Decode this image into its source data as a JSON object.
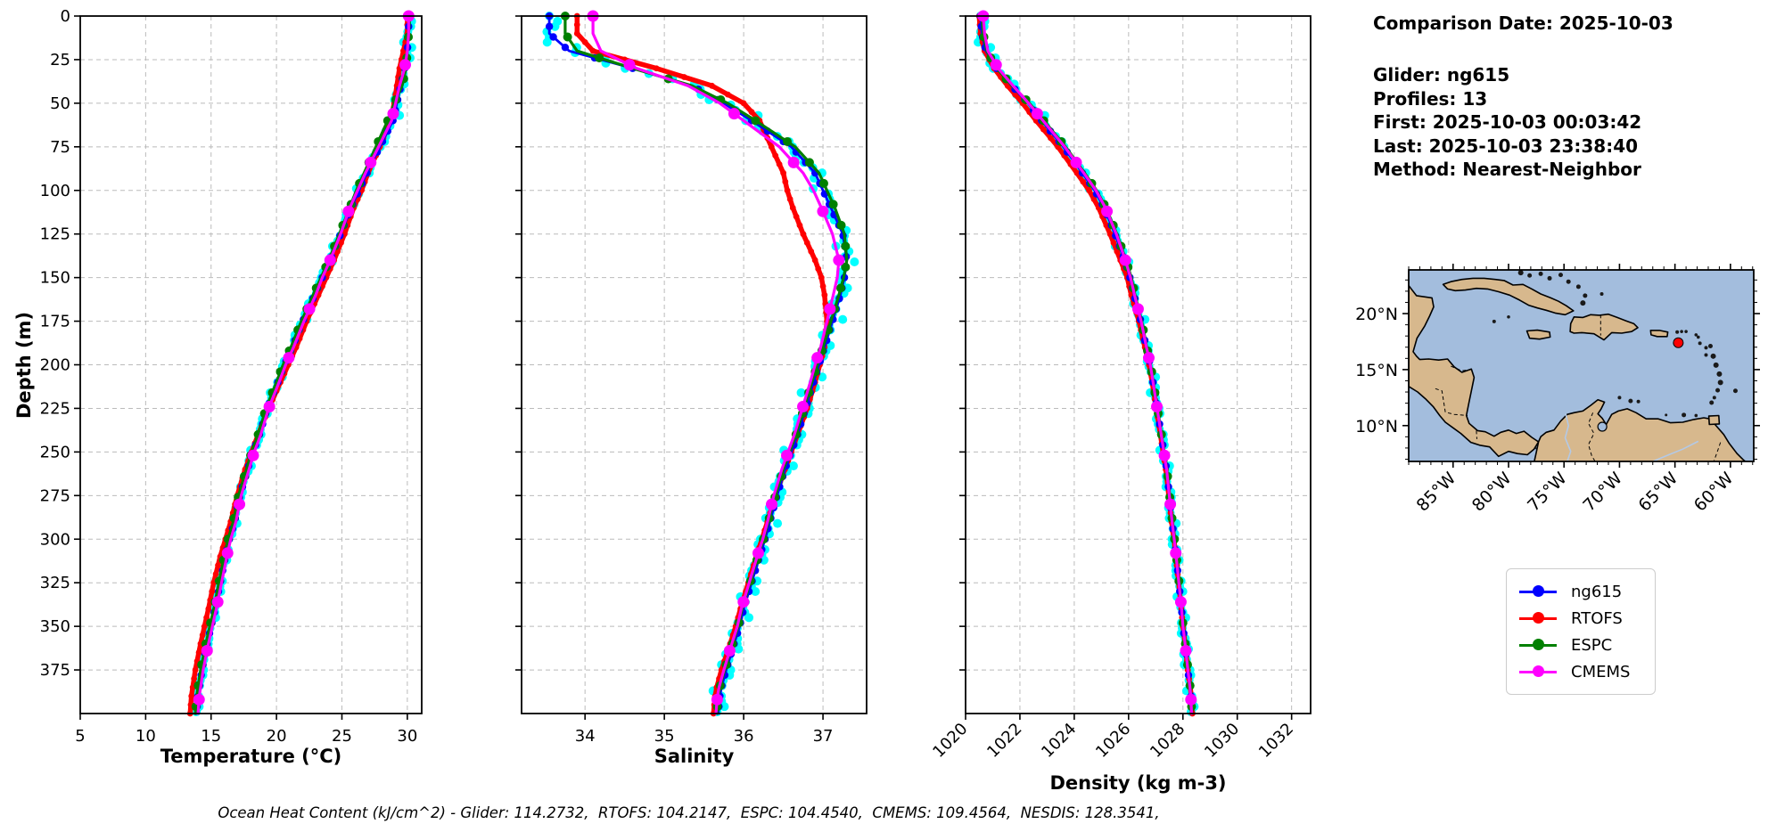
{
  "info": {
    "title": "Comparison Date: 2025-10-03",
    "lines": [
      "Glider: ng615",
      "Profiles: 13",
      "First: 2025-10-03 00:03:42",
      "Last: 2025-10-03 23:38:40",
      "Method: Nearest-Neighbor"
    ]
  },
  "caption": {
    "text": "Ocean Heat Content (kJ/cm^2) - Glider: 114.2732,  RTOFS: 104.2147,  ESPC: 104.4540,  CMEMS: 109.4564,  NESDIS: 128.3541,"
  },
  "legend": {
    "items": [
      {
        "label": "ng615",
        "color": "#0000ff"
      },
      {
        "label": "RTOFS",
        "color": "#ff0000"
      },
      {
        "label": "ESPC",
        "color": "#008000"
      },
      {
        "label": "CMEMS",
        "color": "#ff00ff"
      }
    ]
  },
  "map": {
    "water_color": "#a3bddd",
    "land_color": "#d7b88d",
    "extent": {
      "lon_w": [
        89.0,
        57.9
      ],
      "lat_n": [
        6.8,
        23.9
      ]
    },
    "lon_ticks": [
      85,
      80,
      75,
      70,
      65,
      60
    ],
    "lon_tick_labels": [
      "85°W",
      "80°W",
      "75°W",
      "70°W",
      "65°W",
      "60°W"
    ],
    "lat_ticks": [
      20,
      15,
      10
    ],
    "lat_tick_labels": [
      "20°N",
      "15°N",
      "10°N"
    ],
    "glider_point": {
      "lon_w": 64.7,
      "lat_n": 17.4,
      "color": "#ff0000"
    }
  },
  "chart_data": {
    "type": "line",
    "title": "",
    "depth_axis": {
      "label": "Depth (m)",
      "lim": [
        0,
        400
      ],
      "ticks": [
        0,
        25,
        50,
        75,
        100,
        125,
        150,
        175,
        200,
        225,
        250,
        275,
        300,
        325,
        350,
        375
      ]
    },
    "depths": [
      0,
      10,
      20,
      30,
      40,
      50,
      60,
      75,
      90,
      100,
      110,
      125,
      140,
      150,
      160,
      175,
      190,
      200,
      210,
      225,
      240,
      250,
      260,
      275,
      290,
      300,
      310,
      325,
      340,
      350,
      360,
      375,
      385,
      390,
      400
    ],
    "panels": [
      {
        "key": "temperature",
        "xlabel": "Temperature (°C)",
        "xlim": [
          5,
          31.1
        ],
        "xticks": [
          5,
          10,
          15,
          20,
          25,
          30
        ],
        "xtick_labels": [
          "5",
          "10",
          "15",
          "20",
          "25",
          "30"
        ],
        "rotate_xticks": false,
        "grid": true
      },
      {
        "key": "salinity",
        "xlabel": "Salinity",
        "xlim": [
          33.2,
          37.55
        ],
        "xticks": [
          34,
          35,
          36,
          37
        ],
        "xtick_labels": [
          "34",
          "35",
          "36",
          "37"
        ],
        "rotate_xticks": false,
        "grid": true
      },
      {
        "key": "density",
        "xlabel": "Density (kg m-3)",
        "xlim": [
          1020,
          1032.7
        ],
        "xticks": [
          1020,
          1022,
          1024,
          1026,
          1028,
          1030,
          1032
        ],
        "xtick_labels": [
          "1020",
          "1022",
          "1024",
          "1026",
          "1028",
          "1030",
          "1032"
        ],
        "rotate_xticks": true,
        "grid": true
      }
    ],
    "glider_spread": {
      "color": "#00ffff",
      "temperature": 0.22,
      "salinity": 0.1,
      "density": 0.14
    },
    "series": [
      {
        "name": "ng615",
        "color": "#0000ff",
        "temperature": [
          30.1,
          30.1,
          30.0,
          29.8,
          29.5,
          29.2,
          28.9,
          27.9,
          26.9,
          26.3,
          25.7,
          24.9,
          24.1,
          23.5,
          22.9,
          22.0,
          21.2,
          20.6,
          20.1,
          19.3,
          18.7,
          18.2,
          17.8,
          17.2,
          16.8,
          16.4,
          16.1,
          15.7,
          15.3,
          15.0,
          14.7,
          14.3,
          14.1,
          14.0,
          13.9
        ],
        "salinity": [
          33.55,
          33.55,
          33.8,
          34.6,
          35.35,
          35.75,
          36.1,
          36.6,
          36.9,
          37.0,
          37.1,
          37.25,
          37.3,
          37.27,
          37.22,
          37.12,
          37.02,
          36.95,
          36.88,
          36.78,
          36.68,
          36.6,
          36.52,
          36.42,
          36.33,
          36.27,
          36.2,
          36.1,
          36.0,
          35.95,
          35.88,
          35.78,
          35.72,
          35.7,
          35.68
        ],
        "density": [
          1020.55,
          1020.6,
          1020.75,
          1021.15,
          1021.7,
          1022.3,
          1022.8,
          1023.6,
          1024.3,
          1024.75,
          1025.1,
          1025.5,
          1025.85,
          1026.05,
          1026.2,
          1026.45,
          1026.65,
          1026.8,
          1026.9,
          1027.05,
          1027.2,
          1027.3,
          1027.4,
          1027.5,
          1027.6,
          1027.68,
          1027.75,
          1027.85,
          1027.95,
          1028.0,
          1028.08,
          1028.18,
          1028.26,
          1028.3,
          1028.33
        ]
      },
      {
        "name": "RTOFS",
        "color": "#ff0000",
        "temperature": [
          30.0,
          30.0,
          29.7,
          29.4,
          29.2,
          29.0,
          28.7,
          27.9,
          27.0,
          26.5,
          25.9,
          25.2,
          24.4,
          23.8,
          23.2,
          22.3,
          21.5,
          20.9,
          20.3,
          19.4,
          18.6,
          18.1,
          17.6,
          17.0,
          16.5,
          16.1,
          15.7,
          15.2,
          14.8,
          14.5,
          14.2,
          13.8,
          13.6,
          13.5,
          13.4
        ],
        "salinity": [
          33.9,
          33.9,
          34.1,
          34.9,
          35.6,
          36.0,
          36.2,
          36.35,
          36.5,
          36.55,
          36.62,
          36.75,
          36.9,
          36.98,
          37.02,
          37.05,
          37.02,
          36.96,
          36.9,
          36.8,
          36.68,
          36.6,
          36.52,
          36.4,
          36.3,
          36.23,
          36.16,
          36.06,
          35.96,
          35.9,
          35.83,
          35.72,
          35.66,
          35.64,
          35.62
        ],
        "density": [
          1020.5,
          1020.55,
          1020.7,
          1021.05,
          1021.55,
          1022.1,
          1022.6,
          1023.4,
          1024.1,
          1024.55,
          1024.9,
          1025.32,
          1025.7,
          1025.95,
          1026.1,
          1026.38,
          1026.6,
          1026.75,
          1026.87,
          1027.02,
          1027.17,
          1027.27,
          1027.37,
          1027.48,
          1027.58,
          1027.67,
          1027.74,
          1027.84,
          1027.94,
          1028.0,
          1028.08,
          1028.18,
          1028.27,
          1028.31,
          1028.35
        ]
      },
      {
        "name": "ESPC",
        "color": "#008000",
        "temperature": [
          30.2,
          30.1,
          30.0,
          29.9,
          29.6,
          29.0,
          28.5,
          27.6,
          26.7,
          26.1,
          25.6,
          24.8,
          24.0,
          23.4,
          22.8,
          21.9,
          21.1,
          20.5,
          20.0,
          19.2,
          18.6,
          18.1,
          17.7,
          17.1,
          16.7,
          16.3,
          16.0,
          15.6,
          15.2,
          14.9,
          14.6,
          14.2,
          14.0,
          13.9,
          13.8
        ],
        "salinity": [
          33.75,
          33.75,
          33.9,
          34.6,
          35.35,
          35.8,
          36.15,
          36.65,
          36.95,
          37.05,
          37.15,
          37.27,
          37.3,
          37.26,
          37.2,
          37.1,
          37.0,
          36.93,
          36.86,
          36.76,
          36.66,
          36.58,
          36.5,
          36.4,
          36.31,
          36.25,
          36.18,
          36.08,
          35.98,
          35.93,
          35.86,
          35.76,
          35.7,
          35.68,
          35.66
        ],
        "density": [
          1020.6,
          1020.65,
          1020.78,
          1021.15,
          1021.72,
          1022.35,
          1022.88,
          1023.68,
          1024.38,
          1024.82,
          1025.17,
          1025.57,
          1025.9,
          1026.1,
          1026.24,
          1026.48,
          1026.67,
          1026.81,
          1026.91,
          1027.06,
          1027.21,
          1027.31,
          1027.41,
          1027.51,
          1027.61,
          1027.69,
          1027.76,
          1027.86,
          1027.96,
          1028.01,
          1028.09,
          1028.19,
          1028.27,
          1028.3,
          1028.33
        ]
      },
      {
        "name": "CMEMS",
        "color": "#ff00ff",
        "temperature": [
          30.1,
          30.1,
          30.0,
          29.8,
          29.4,
          29.1,
          28.8,
          27.8,
          26.8,
          26.2,
          25.6,
          24.9,
          24.1,
          23.5,
          23.0,
          22.1,
          21.3,
          20.7,
          20.2,
          19.4,
          18.8,
          18.3,
          17.9,
          17.3,
          16.9,
          16.5,
          16.2,
          15.8,
          15.4,
          15.1,
          14.8,
          14.4,
          14.2,
          14.1,
          14.0
        ],
        "salinity": [
          34.1,
          34.1,
          34.2,
          34.65,
          35.3,
          35.7,
          36.0,
          36.45,
          36.75,
          36.88,
          36.98,
          37.12,
          37.2,
          37.18,
          37.13,
          37.05,
          36.97,
          36.9,
          36.84,
          36.74,
          36.64,
          36.56,
          36.48,
          36.38,
          36.3,
          36.24,
          36.17,
          36.07,
          35.97,
          35.92,
          35.85,
          35.75,
          35.69,
          35.67,
          35.65
        ],
        "density": [
          1020.65,
          1020.7,
          1020.82,
          1021.2,
          1021.75,
          1022.32,
          1022.85,
          1023.65,
          1024.35,
          1024.8,
          1025.15,
          1025.55,
          1025.88,
          1026.07,
          1026.22,
          1026.46,
          1026.66,
          1026.8,
          1026.9,
          1027.05,
          1027.2,
          1027.3,
          1027.4,
          1027.5,
          1027.6,
          1027.68,
          1027.75,
          1027.85,
          1027.95,
          1028.0,
          1028.08,
          1028.18,
          1028.26,
          1028.29,
          1028.32
        ]
      }
    ]
  }
}
